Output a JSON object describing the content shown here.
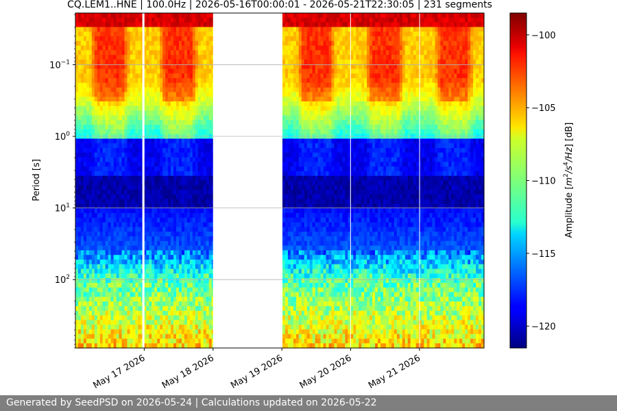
{
  "chart_data": {
    "type": "heatmap",
    "title": "CQ.LEM1..HNE | 100.0Hz | 2026-05-16T00:00:01 - 2026-05-21T22:30:05 | 231 segments",
    "xlabel": "",
    "ylabel": "Period [s]",
    "x_scale": "date",
    "xlim": [
      "2026-05-16T00:00:01",
      "2026-05-21T22:30:05"
    ],
    "x_tick_labels": [
      "May 17 2026",
      "May 18 2026",
      "May 19 2026",
      "May 20 2026",
      "May 21 2026"
    ],
    "x_ticks": [
      "2026-05-17",
      "2026-05-18",
      "2026-05-19",
      "2026-05-20",
      "2026-05-21"
    ],
    "y_scale": "log",
    "y_inverted": true,
    "ylim": [
      0.019,
      900
    ],
    "y_ticks": [
      0.1,
      1,
      10,
      100
    ],
    "y_tick_labels": [
      {
        "base": "10",
        "exp": "−1"
      },
      {
        "base": "10",
        "exp": "0"
      },
      {
        "base": "10",
        "exp": "1"
      },
      {
        "base": "10",
        "exp": "2"
      }
    ],
    "grid": true,
    "colormap": "jet",
    "colorbar": {
      "label_prefix": "Amplitude [",
      "label_math": [
        "m",
        "2",
        "/s",
        "4",
        "/Hz",
        "] [dB]"
      ],
      "range": [
        -121.5,
        -98.5
      ],
      "ticks": [
        -120,
        -115,
        -110,
        -105,
        -100
      ],
      "tick_labels": [
        "−120",
        "−115",
        "−110",
        "−105",
        "−100"
      ]
    },
    "data_gaps": [
      {
        "start": "2026-05-16T23:20:00",
        "end": "2026-05-17T00:05:00"
      },
      {
        "start": "2026-05-18T00:00:00",
        "end": "2026-05-19T00:00:00"
      },
      {
        "start": "2026-05-19T23:50:00",
        "end": "2026-05-20T00:05:00"
      },
      {
        "start": "2026-05-20T23:55:00",
        "end": "2026-05-21T00:05:00"
      }
    ],
    "amplitude_bands_db": [
      {
        "period_range": [
          0.02,
          0.03
        ],
        "level": -101
      },
      {
        "period_range": [
          0.03,
          0.3
        ],
        "level_day": -103,
        "level_night": -106
      },
      {
        "period_range": [
          0.3,
          1
        ],
        "level": -112
      },
      {
        "period_range": [
          1,
          10
        ],
        "level": -119
      },
      {
        "period_range": [
          10,
          100
        ],
        "level": -117
      },
      {
        "period_range": [
          100,
          900
        ],
        "level": -107
      }
    ]
  },
  "footer": {
    "text": "Generated by SeedPSD on 2026-05-24 | Calculations updated on 2026-05-22"
  }
}
